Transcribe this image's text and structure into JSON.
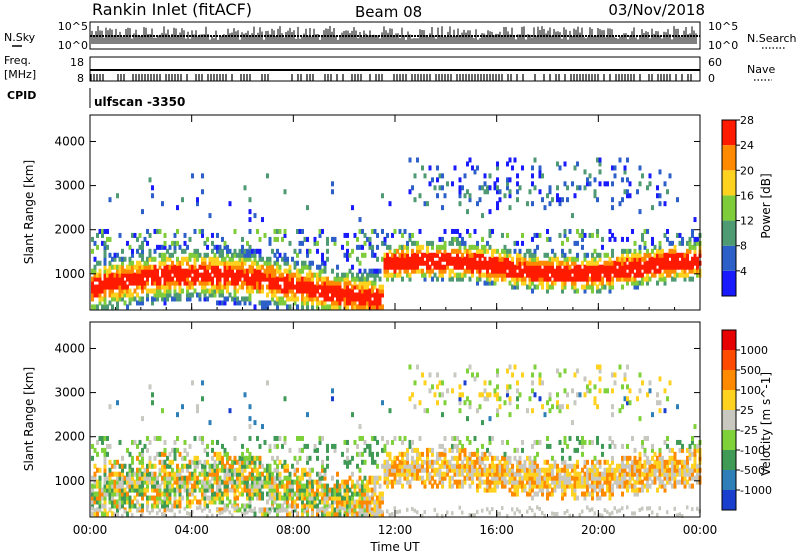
{
  "header": {
    "station": "Rankin Inlet (fitACF)",
    "beam": "Beam 08",
    "date": "03/Nov/2018"
  },
  "status_panel": {
    "n_sky_label": "N.Sky",
    "n_search_label": "N.Search",
    "freq_label_1": "Freq.",
    "freq_label_2": "[MHz]",
    "nave_label": "Nave",
    "cpid_label": "CPID",
    "cpid_value": "ulfscan -3350",
    "noise_ticks": [
      "10^5",
      "10^0"
    ],
    "freq_ticks": [
      "18",
      "8"
    ],
    "nave_ticks": [
      "60",
      "0"
    ]
  },
  "colors": {
    "frame": "#000000",
    "background": "#ffffff"
  },
  "chart_data": [
    {
      "type": "heatmap",
      "name": "power",
      "ylabel": "Slant Range [km]",
      "xlabel": "",
      "y_ticks": [
        "1000",
        "2000",
        "3000",
        "4000"
      ],
      "ylim": [
        180,
        4600
      ],
      "colorbar_label": "Power [dB]",
      "colorbar_ticks": [
        "4",
        "8",
        "12",
        "16",
        "20",
        "24",
        "28"
      ],
      "colorbar_colors": [
        "#1a1aff",
        "#2c5fc8",
        "#4e9a72",
        "#7fcc3a",
        "#ffd21f",
        "#ff8a00",
        "#ff1a00"
      ]
    },
    {
      "type": "heatmap",
      "name": "velocity",
      "ylabel": "Slant Range [km]",
      "xlabel": "Time UT",
      "x_ticks": [
        "00:00",
        "04:00",
        "08:00",
        "12:00",
        "16:00",
        "20:00",
        "00:00"
      ],
      "y_ticks": [
        "1000",
        "2000",
        "3000",
        "4000"
      ],
      "ylim": [
        180,
        4600
      ],
      "colorbar_label": "Velocity [m s^-1]",
      "colorbar_ticks": [
        "1000",
        "500",
        "100",
        "25",
        "-25",
        "-100",
        "-500",
        "-1000"
      ],
      "colorbar_colors": [
        "#1a3fcf",
        "#2e7fb8",
        "#3f9a55",
        "#7fd13a",
        "#c8c8c0",
        "#ffd21f",
        "#ff8a00",
        "#ff4a00",
        "#e60000"
      ]
    }
  ]
}
